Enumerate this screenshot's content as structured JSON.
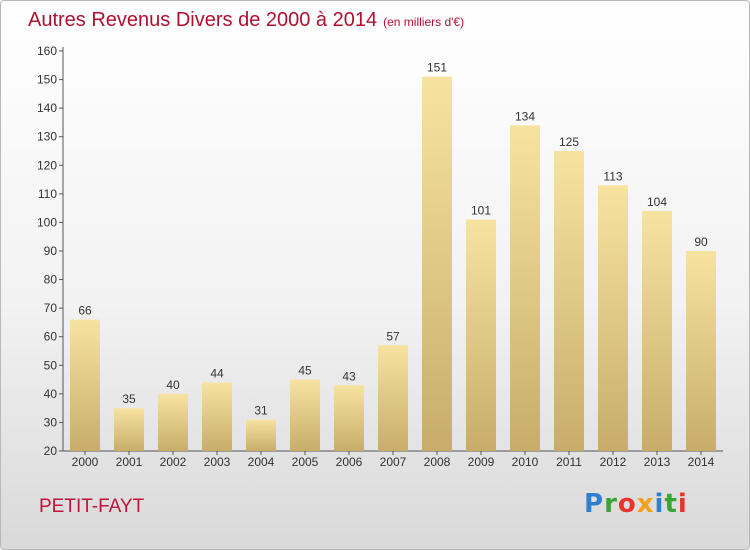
{
  "title": "Autres Revenus Divers de 2000 à 2014",
  "subtitle": "(en milliers d'€)",
  "commune": "PETIT-FAYT",
  "logo": {
    "text": "Proxiti",
    "letters": [
      {
        "ch": "P",
        "color": "#2f7fd0"
      },
      {
        "ch": "r",
        "color": "#3aa535"
      },
      {
        "ch": "o",
        "color": "#e8352c"
      },
      {
        "ch": "x",
        "color": "#f2a01a"
      },
      {
        "ch": "i",
        "color": "#2f7fd0"
      },
      {
        "ch": "t",
        "color": "#3aa535"
      },
      {
        "ch": "i",
        "color": "#e8352c"
      }
    ]
  },
  "chart_data": {
    "type": "bar",
    "title": "Autres Revenus Divers de 2000 à 2014",
    "subtitle": "(en milliers d'€)",
    "categories": [
      "2000",
      "2001",
      "2002",
      "2003",
      "2004",
      "2005",
      "2006",
      "2007",
      "2008",
      "2009",
      "2010",
      "2011",
      "2012",
      "2013",
      "2014"
    ],
    "values": [
      66,
      35,
      40,
      44,
      31,
      45,
      43,
      57,
      151,
      101,
      134,
      125,
      113,
      104,
      90
    ],
    "ylim": [
      20,
      160
    ],
    "yticks": [
      20,
      30,
      40,
      50,
      60,
      70,
      80,
      90,
      100,
      110,
      120,
      130,
      140,
      150,
      160
    ],
    "grid": false,
    "bar_color_light": "#f7e3a0",
    "bar_color_dark": "#c8ad6a",
    "label_color": "#333333"
  }
}
